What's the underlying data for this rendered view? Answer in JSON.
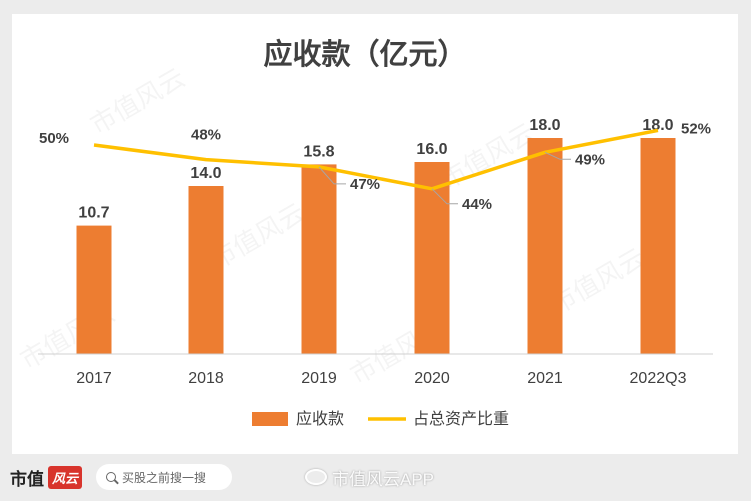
{
  "chart_data": {
    "type": "bar",
    "title": "应收款（亿元）",
    "categories": [
      "2017",
      "2018",
      "2019",
      "2020",
      "2021",
      "2022Q3"
    ],
    "series": [
      {
        "name": "应收款",
        "type": "bar",
        "values": [
          10.7,
          14.0,
          15.8,
          16.0,
          18.0,
          18.0
        ],
        "labels": [
          "10.7",
          "14.0",
          "15.8",
          "16.0",
          "18.0",
          "18.0"
        ],
        "color": "#ed7d31"
      },
      {
        "name": "占总资产比重",
        "type": "line",
        "values": [
          50,
          48,
          47,
          44,
          49,
          52
        ],
        "labels": [
          "50%",
          "48%",
          "47%",
          "44%",
          "49%",
          "52%"
        ],
        "color": "#ffc000"
      }
    ],
    "legend_position": "bottom",
    "grid": false
  },
  "watermark": "市值风云",
  "footer": {
    "brand_name": "市值",
    "brand_seal": "风云",
    "search_placeholder": "买股之前搜一搜",
    "weibo_handle": "市值风云APP"
  }
}
